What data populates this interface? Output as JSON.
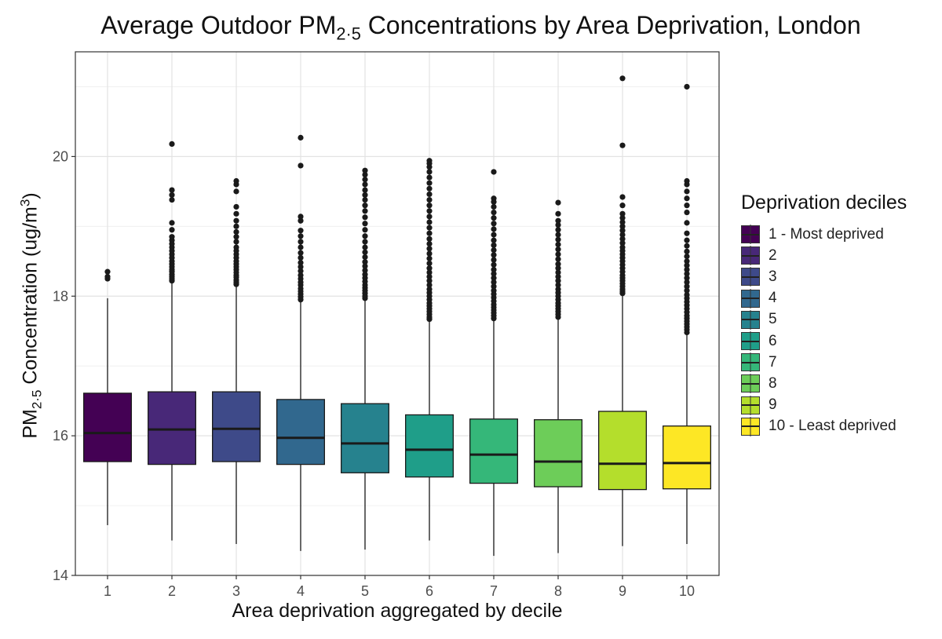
{
  "chart_data": {
    "type": "box",
    "title_main": "Average Outdoor PM",
    "title_sub": "2·5",
    "title_rest": " Concentrations by Area Deprivation, London",
    "xlabel": "Area deprivation aggregated by decile",
    "ylabel_main": "PM",
    "ylabel_sub": "2·5",
    "ylabel_rest": " Concentration (ug/m",
    "ylabel_sup": "3",
    "ylabel_end": ")",
    "ylim": [
      14,
      21.5
    ],
    "yticks": [
      14,
      16,
      18,
      20
    ],
    "grid": true,
    "legend_placement": "right",
    "legend_title": "Deprivation deciles",
    "categories": [
      "1",
      "2",
      "3",
      "4",
      "5",
      "6",
      "7",
      "8",
      "9",
      "10"
    ],
    "legend_labels": [
      "1 - Most deprived",
      "2",
      "3",
      "4",
      "5",
      "6",
      "7",
      "8",
      "9",
      "10 - Least deprived"
    ],
    "colors": [
      "#440154",
      "#482878",
      "#3e4a89",
      "#31688e",
      "#26828e",
      "#1f9e89",
      "#35b779",
      "#6dcd59",
      "#b4de2c",
      "#fde725"
    ],
    "boxes": [
      {
        "whisker_low": 14.72,
        "q1": 15.63,
        "median": 16.04,
        "q3": 16.61,
        "whisker_high": 17.97,
        "outliers": [
          18.25,
          18.28,
          18.35
        ]
      },
      {
        "whisker_low": 14.5,
        "q1": 15.59,
        "median": 16.09,
        "q3": 16.63,
        "whisker_high": 18.2,
        "outliers": [
          18.22,
          18.25,
          18.28,
          18.31,
          18.35,
          18.38,
          18.42,
          18.46,
          18.5,
          18.55,
          18.6,
          18.65,
          18.7,
          18.75,
          18.8,
          18.85,
          18.95,
          19.05,
          19.38,
          19.45,
          19.52,
          20.18
        ]
      },
      {
        "whisker_low": 14.45,
        "q1": 15.63,
        "median": 16.1,
        "q3": 16.63,
        "whisker_high": 18.15,
        "outliers": [
          18.17,
          18.2,
          18.23,
          18.27,
          18.3,
          18.34,
          18.38,
          18.42,
          18.46,
          18.5,
          18.55,
          18.6,
          18.65,
          18.7,
          18.78,
          18.85,
          18.92,
          19.0,
          19.08,
          19.18,
          19.28,
          19.5,
          19.6,
          19.65
        ]
      },
      {
        "whisker_low": 14.35,
        "q1": 15.59,
        "median": 15.97,
        "q3": 16.52,
        "whisker_high": 17.92,
        "outliers": [
          17.95,
          17.99,
          18.03,
          18.07,
          18.11,
          18.16,
          18.2,
          18.25,
          18.3,
          18.36,
          18.42,
          18.48,
          18.55,
          18.62,
          18.7,
          18.78,
          18.86,
          18.94,
          19.08,
          19.14,
          19.87,
          20.27
        ]
      },
      {
        "whisker_low": 14.37,
        "q1": 15.47,
        "median": 15.89,
        "q3": 16.46,
        "whisker_high": 17.95,
        "outliers": [
          17.97,
          18.0,
          18.04,
          18.08,
          18.12,
          18.16,
          18.21,
          18.26,
          18.31,
          18.37,
          18.43,
          18.49,
          18.56,
          18.63,
          18.7,
          18.78,
          18.86,
          18.95,
          19.04,
          19.13,
          19.22,
          19.3,
          19.38,
          19.45,
          19.52,
          19.6,
          19.67,
          19.74,
          19.8
        ]
      },
      {
        "whisker_low": 14.5,
        "q1": 15.41,
        "median": 15.8,
        "q3": 16.3,
        "whisker_high": 17.65,
        "outliers": [
          17.67,
          17.7,
          17.74,
          17.78,
          17.82,
          17.86,
          17.9,
          17.95,
          18.0,
          18.05,
          18.1,
          18.16,
          18.22,
          18.28,
          18.34,
          18.4,
          18.47,
          18.54,
          18.61,
          18.68,
          18.75,
          18.82,
          18.9,
          18.98,
          19.06,
          19.14,
          19.22,
          19.3,
          19.38,
          19.46,
          19.54,
          19.62,
          19.7,
          19.78,
          19.85,
          19.9,
          19.94
        ]
      },
      {
        "whisker_low": 14.28,
        "q1": 15.32,
        "median": 15.73,
        "q3": 16.24,
        "whisker_high": 17.65,
        "outliers": [
          17.68,
          17.72,
          17.76,
          17.8,
          17.84,
          17.88,
          17.93,
          17.98,
          18.03,
          18.08,
          18.14,
          18.2,
          18.26,
          18.32,
          18.38,
          18.45,
          18.52,
          18.59,
          18.66,
          18.73,
          18.8,
          18.88,
          18.96,
          19.04,
          19.12,
          19.2,
          19.28,
          19.35,
          19.4,
          19.78
        ]
      },
      {
        "whisker_low": 14.32,
        "q1": 15.27,
        "median": 15.63,
        "q3": 16.23,
        "whisker_high": 17.68,
        "outliers": [
          17.7,
          17.74,
          17.78,
          17.82,
          17.86,
          17.9,
          17.95,
          18.0,
          18.05,
          18.1,
          18.16,
          18.22,
          18.28,
          18.34,
          18.4,
          18.46,
          18.53,
          18.6,
          18.67,
          18.74,
          18.81,
          18.88,
          18.95,
          19.02,
          19.08,
          19.18,
          19.34
        ]
      },
      {
        "whisker_low": 14.42,
        "q1": 15.23,
        "median": 15.6,
        "q3": 16.35,
        "whisker_high": 18.02,
        "outliers": [
          18.04,
          18.07,
          18.1,
          18.14,
          18.18,
          18.22,
          18.26,
          18.3,
          18.35,
          18.4,
          18.45,
          18.5,
          18.55,
          18.6,
          18.65,
          18.7,
          18.76,
          18.82,
          18.88,
          18.94,
          19.0,
          19.06,
          19.12,
          19.18,
          19.3,
          19.42,
          20.16,
          21.12
        ]
      },
      {
        "whisker_low": 14.45,
        "q1": 15.24,
        "median": 15.61,
        "q3": 16.14,
        "whisker_high": 17.45,
        "outliers": [
          17.48,
          17.52,
          17.56,
          17.6,
          17.64,
          17.68,
          17.72,
          17.77,
          17.82,
          17.87,
          17.92,
          17.97,
          18.02,
          18.08,
          18.14,
          18.2,
          18.26,
          18.32,
          18.38,
          18.44,
          18.5,
          18.57,
          18.64,
          18.72,
          18.8,
          18.9,
          19.05,
          19.2,
          19.3,
          19.4,
          19.5,
          19.6,
          19.65,
          21.0
        ]
      }
    ]
  }
}
